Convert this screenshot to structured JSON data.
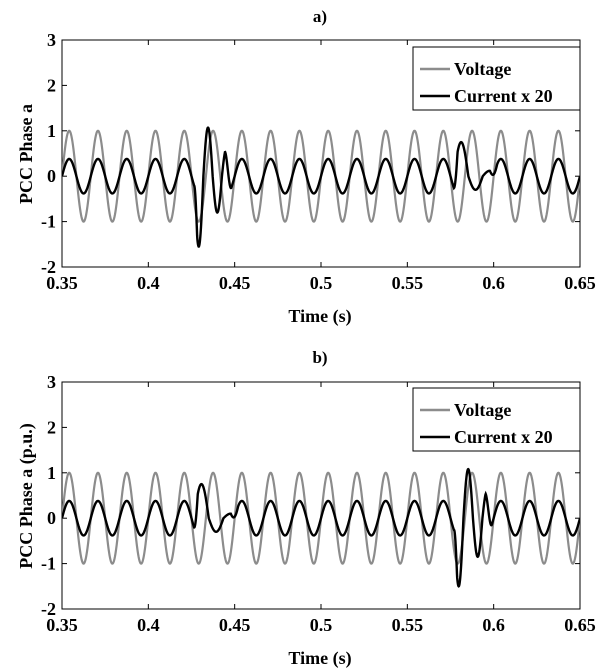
{
  "colors": {
    "voltage": "#8c8c8c",
    "current": "#000000",
    "axes": "#000000",
    "background": "#ffffff"
  },
  "chart_data": [
    {
      "type": "line",
      "title": "a)",
      "xlabel": "Time (s)",
      "ylabel": "PCC Phase a",
      "xlim": [
        0.35,
        0.65
      ],
      "ylim": [
        -2,
        3
      ],
      "xticks": [
        "0.35",
        "0.4",
        "0.45",
        "0.5",
        "0.55",
        "0.6",
        "0.65"
      ],
      "yticks": [
        "-2",
        "-1",
        "0",
        "1",
        "2",
        "3"
      ],
      "grid": false,
      "legend_position": "top-right",
      "series": [
        {
          "name": "Voltage",
          "color": "#8c8c8c",
          "amplitude": 1.0,
          "frequency_hz": 60
        },
        {
          "name": "Current x 20",
          "color": "#000000",
          "amplitude": 0.38,
          "frequency_hz": 60,
          "transients": [
            {
              "t_start": 0.4265,
              "t_end": 0.448,
              "peak_values": [
                -1.55,
                1.07,
                -0.8,
                0.62
              ]
            },
            {
              "t_start": 0.577,
              "t_end": 0.602,
              "peak_values": [
                0.75,
                -0.3,
                0.12
              ]
            }
          ]
        }
      ]
    },
    {
      "type": "line",
      "title": "b)",
      "xlabel": "Time (s)",
      "ylabel": "PCC Phase a (p.u.)",
      "xlim": [
        0.35,
        0.65
      ],
      "ylim": [
        -2,
        3
      ],
      "xticks": [
        "0.35",
        "0.4",
        "0.45",
        "0.5",
        "0.55",
        "0.6",
        "0.65"
      ],
      "yticks": [
        "-2",
        "-1",
        "0",
        "1",
        "2",
        "3"
      ],
      "grid": false,
      "legend_position": "top-right",
      "series": [
        {
          "name": "Voltage",
          "color": "#8c8c8c",
          "amplitude": 1.0,
          "frequency_hz": 60
        },
        {
          "name": "Current x 20",
          "color": "#000000",
          "amplitude": 0.38,
          "frequency_hz": 60,
          "transients": [
            {
              "t_start": 0.4265,
              "t_end": 0.452,
              "peak_values": [
                0.75,
                -0.3,
                0.1
              ]
            },
            {
              "t_start": 0.577,
              "t_end": 0.599,
              "peak_values": [
                -1.5,
                1.08,
                -0.85,
                0.62
              ]
            }
          ]
        }
      ]
    }
  ]
}
